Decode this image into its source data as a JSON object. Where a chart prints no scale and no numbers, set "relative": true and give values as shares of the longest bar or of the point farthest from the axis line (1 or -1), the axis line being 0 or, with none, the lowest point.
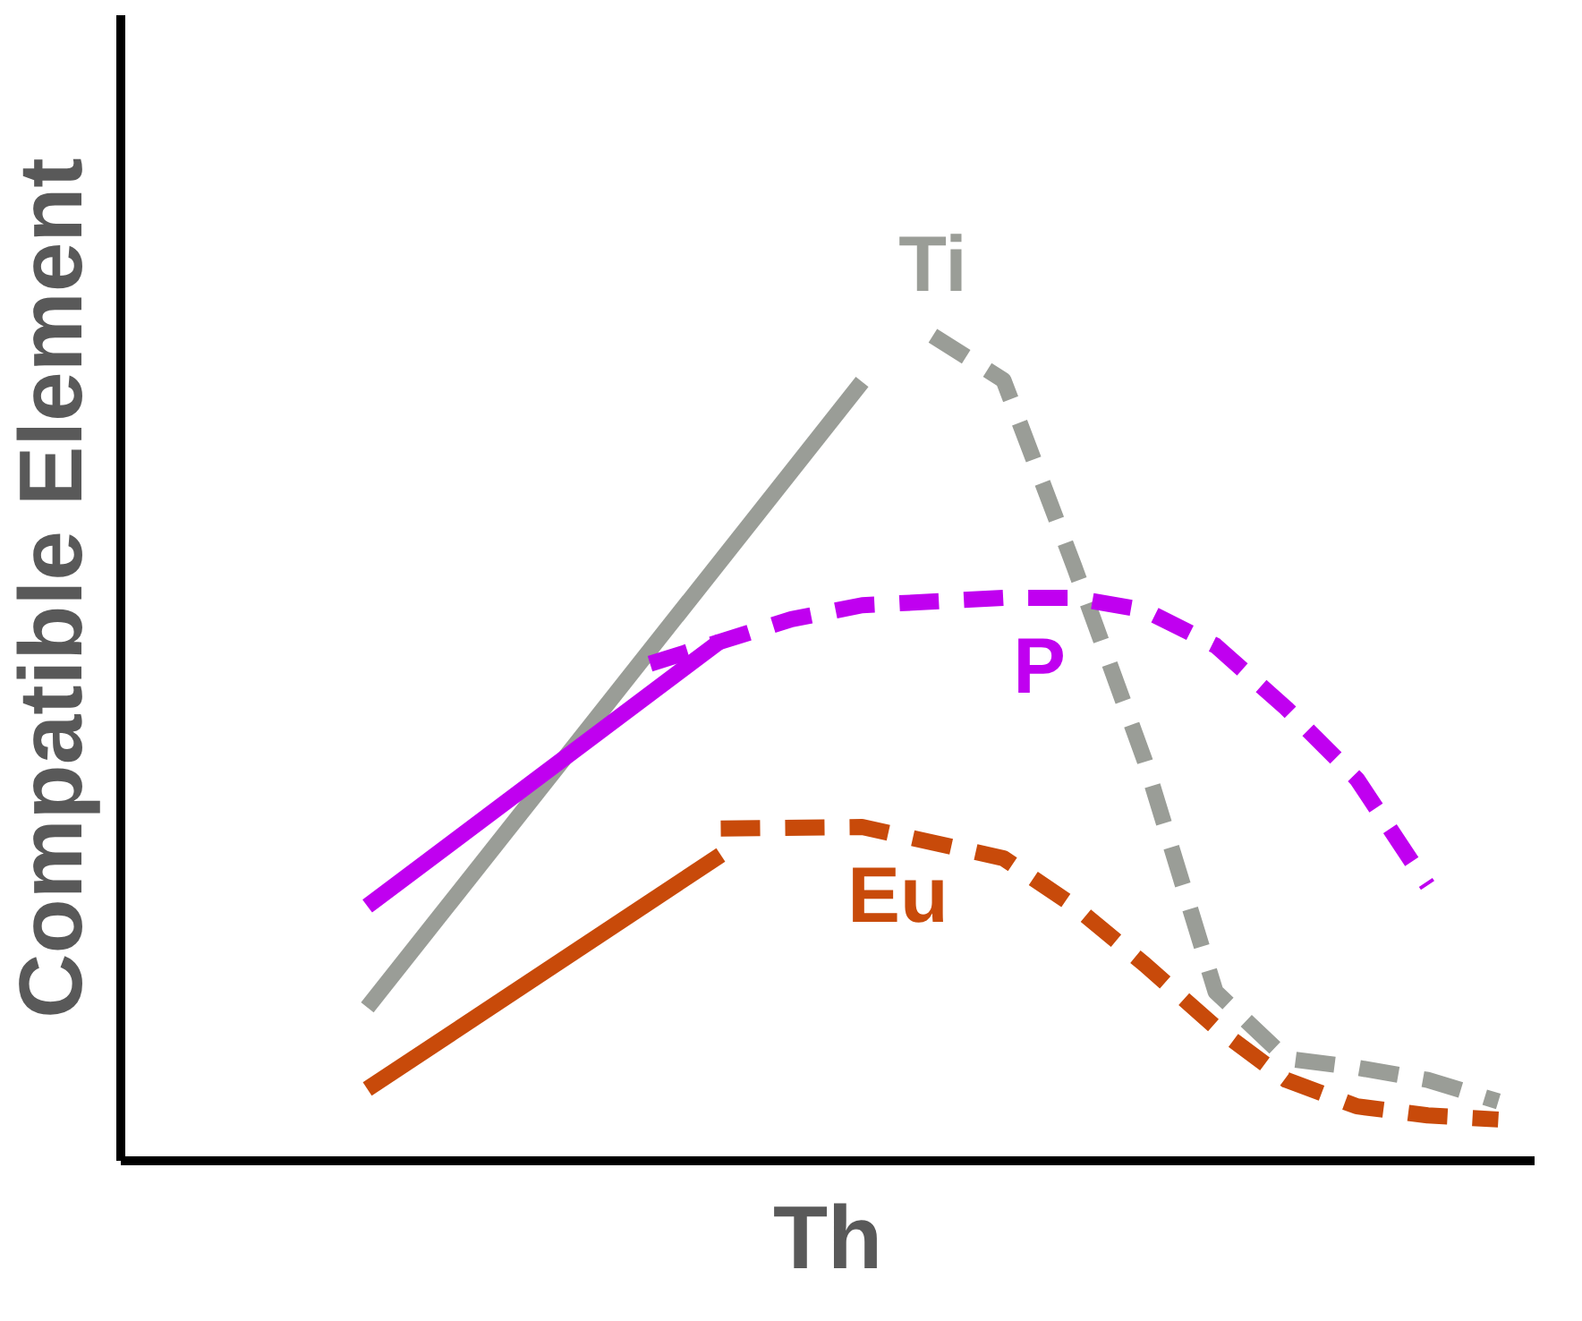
{
  "chart_data": {
    "type": "line",
    "relative": true,
    "xlabel": "Th",
    "ylabel": "Compatible Element",
    "grid": false,
    "tick_labels": false,
    "categories": [
      null,
      null,
      null,
      null,
      null,
      null,
      null,
      null,
      null,
      null,
      null,
      null,
      null,
      null,
      null,
      null,
      null,
      null,
      null,
      null
    ],
    "series": [
      {
        "color": "#9a9d97",
        "line_style": "solid",
        "values": [
          null,
          null,
          null,
          0.185,
          null,
          null,
          null,
          null,
          null,
          null,
          0.944,
          null,
          null,
          null,
          null,
          null,
          null,
          null,
          null,
          null
        ]
      },
      {
        "name": "Ti",
        "color": "#9a9d97",
        "line_style": "dashed",
        "values": [
          null,
          null,
          null,
          null,
          null,
          null,
          null,
          null,
          null,
          null,
          null,
          1.0,
          0.946,
          0.72,
          0.484,
          0.204,
          0.123,
          0.112,
          0.097,
          0.071
        ]
      },
      {
        "color": "#c000f0",
        "line_style": "solid",
        "values": [
          null,
          null,
          null,
          0.308,
          null,
          null,
          null,
          null,
          0.63,
          null,
          null,
          null,
          null,
          null,
          null,
          null,
          null,
          null,
          null,
          null
        ]
      },
      {
        "name": "P",
        "color": "#c000f0",
        "line_style": "dashed",
        "values": [
          null,
          null,
          null,
          null,
          null,
          null,
          null,
          0.602,
          null,
          0.656,
          0.673,
          null,
          0.682,
          0.682,
          0.667,
          0.624,
          0.548,
          0.462,
          0.333,
          null
        ]
      },
      {
        "color": "#c84a0a",
        "line_style": "solid",
        "values": [
          null,
          null,
          null,
          0.086,
          null,
          null,
          null,
          null,
          0.37,
          null,
          null,
          null,
          null,
          null,
          null,
          null,
          null,
          null,
          null,
          null
        ]
      },
      {
        "name": "Eu",
        "color": "#c84a0a",
        "line_style": "dashed",
        "values": [
          null,
          null,
          null,
          null,
          null,
          null,
          null,
          null,
          0.402,
          null,
          0.404,
          null,
          0.366,
          0.308,
          0.237,
          0.161,
          0.097,
          0.065,
          0.054,
          0.049
        ]
      }
    ]
  }
}
